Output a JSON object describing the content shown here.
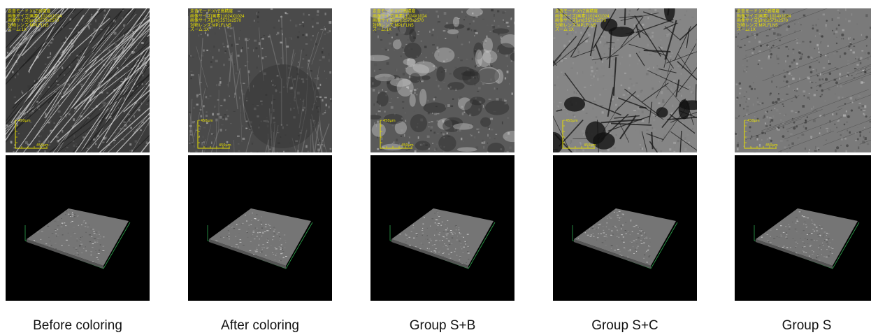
{
  "panels": [
    {
      "label": "Before coloring",
      "overlay": [
        "走査モード:XYZ高精度",
        "画像サイズ[画素]:1024X1024",
        "画像サイズ[µm]:2573x2570",
        "対物レンズ:MPLFLN5",
        "ズーム:1X"
      ],
      "scalebar_v": "450µm",
      "scalebar_h": "450µm",
      "tone": {
        "base": "#3c3c3c",
        "streak": "#d8d8d8"
      },
      "texture": "scratches"
    },
    {
      "label": "After coloring",
      "overlay": [
        "走査モード:XYZ高精度",
        "画像サイズ[画素]:1024X1024",
        "画像サイズ[µm]:2573x2570",
        "対物レンズ:MPLFLN5",
        "ズーム:1X"
      ],
      "scalebar_v": "450µm",
      "scalebar_h": "450µm",
      "tone": {
        "base": "#4a4a4a",
        "streak": "#9a9a9a"
      },
      "texture": "speckle"
    },
    {
      "label": "Group S+B",
      "overlay": [
        "走査モード:XYZ高精度",
        "画像サイズ[画素]:1024X1024",
        "画像サイズ[µm]:2573x2570",
        "対物レンズ:MPLFLN5",
        "ズーム:1X"
      ],
      "scalebar_v": "450µm",
      "scalebar_h": "450µm",
      "tone": {
        "base": "#5a5a5a",
        "streak": "#c0c0c0"
      },
      "texture": "patchy"
    },
    {
      "label": "Group S+C",
      "overlay": [
        "走査モード:XYZ高精度",
        "画像サイズ[画素]:1024X1024",
        "画像サイズ[µm]:2573x2570",
        "対物レンズ:MPLFLN5",
        "ズーム:1X"
      ],
      "scalebar_v": "450µm",
      "scalebar_h": "450µm",
      "tone": {
        "base": "#6a6a6a",
        "streak": "#1a1a1a"
      },
      "texture": "cracked"
    },
    {
      "label": "Group S",
      "overlay": [
        "走査モード:XYZ高精度",
        "画像サイズ[画素]:1024X1024",
        "画像サイズ[µm]:2573x2570",
        "対物レンズ:MPLFLN5",
        "ズーム:1X"
      ],
      "scalebar_v": "450µm",
      "scalebar_h": "450µm",
      "tone": {
        "base": "#7a7a7a",
        "streak": "#b8b8b8"
      },
      "texture": "smooth"
    }
  ],
  "colors": {
    "overlay_text": "#e8e000",
    "axis_green": "#2fa84f",
    "surface_3d": "#8a8a8a"
  }
}
